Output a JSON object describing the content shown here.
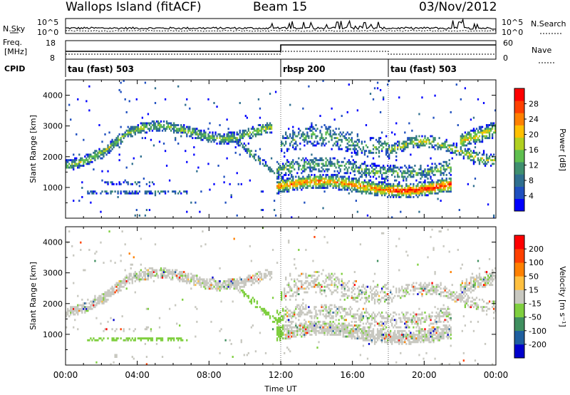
{
  "header": {
    "station": "Wallops Island (fitACF)",
    "beam": "Beam 15",
    "date": "03/Nov/2012"
  },
  "colors": {
    "power_scale": [
      "#0000ff",
      "#1f4fbf",
      "#2f6f8f",
      "#3f8f6f",
      "#5fbf4f",
      "#b0d020",
      "#ffc000",
      "#ff8000",
      "#ff4000",
      "#ff0000"
    ],
    "velocity_scale": [
      "#0000cc",
      "#1f5f9f",
      "#3f8f5f",
      "#7fcf3f",
      "#c8c8c0",
      "#ffc040",
      "#ff8000",
      "#ff4000",
      "#ff0000"
    ]
  },
  "chart_data": [
    {
      "type": "line",
      "name": "noise-panel",
      "ylabel_left": "N.Sky",
      "ylabel_right": "N.Search",
      "left_ticks": [
        "10^5",
        "10^0"
      ],
      "right_ticks": [
        "10^5",
        "10^0"
      ],
      "xlim": [
        "00:00",
        "24:00"
      ]
    },
    {
      "type": "line",
      "name": "frequency-panel",
      "ylabel_left": "Freq.",
      "ylabel_left_unit": "[MHz]",
      "ylabel_right": "Nave",
      "left_ticks": [
        18,
        8
      ],
      "right_ticks": [
        60,
        0
      ],
      "cpid_label": "CPID",
      "cpid_segments": [
        {
          "start_hour": 0,
          "label": "tau (fast) 503"
        },
        {
          "start_hour": 12,
          "label": "rbsp 200"
        },
        {
          "start_hour": 18,
          "label": "tau (fast) 503"
        }
      ]
    },
    {
      "type": "heatmap",
      "name": "power-panel",
      "ylabel": "Slant Range [km]",
      "yticks": [
        1000,
        2000,
        3000,
        4000
      ],
      "ylim": [
        0,
        4500
      ],
      "colorbar_label": "Power [dB]",
      "colorbar_ticks": [
        4,
        8,
        12,
        16,
        20,
        24,
        28
      ]
    },
    {
      "type": "heatmap",
      "name": "velocity-panel",
      "ylabel": "Slant Range [km]",
      "yticks": [
        1000,
        2000,
        3000,
        4000
      ],
      "ylim": [
        0,
        4500
      ],
      "colorbar_label": "Velocity [m s⁻¹]",
      "colorbar_ticks": [
        200,
        100,
        50,
        15,
        -15,
        -50,
        -100,
        -200
      ]
    }
  ],
  "x_axis": {
    "ticks": [
      "00:00",
      "04:00",
      "08:00",
      "12:00",
      "16:00",
      "20:00",
      "00:00"
    ],
    "label": "Time UT"
  }
}
